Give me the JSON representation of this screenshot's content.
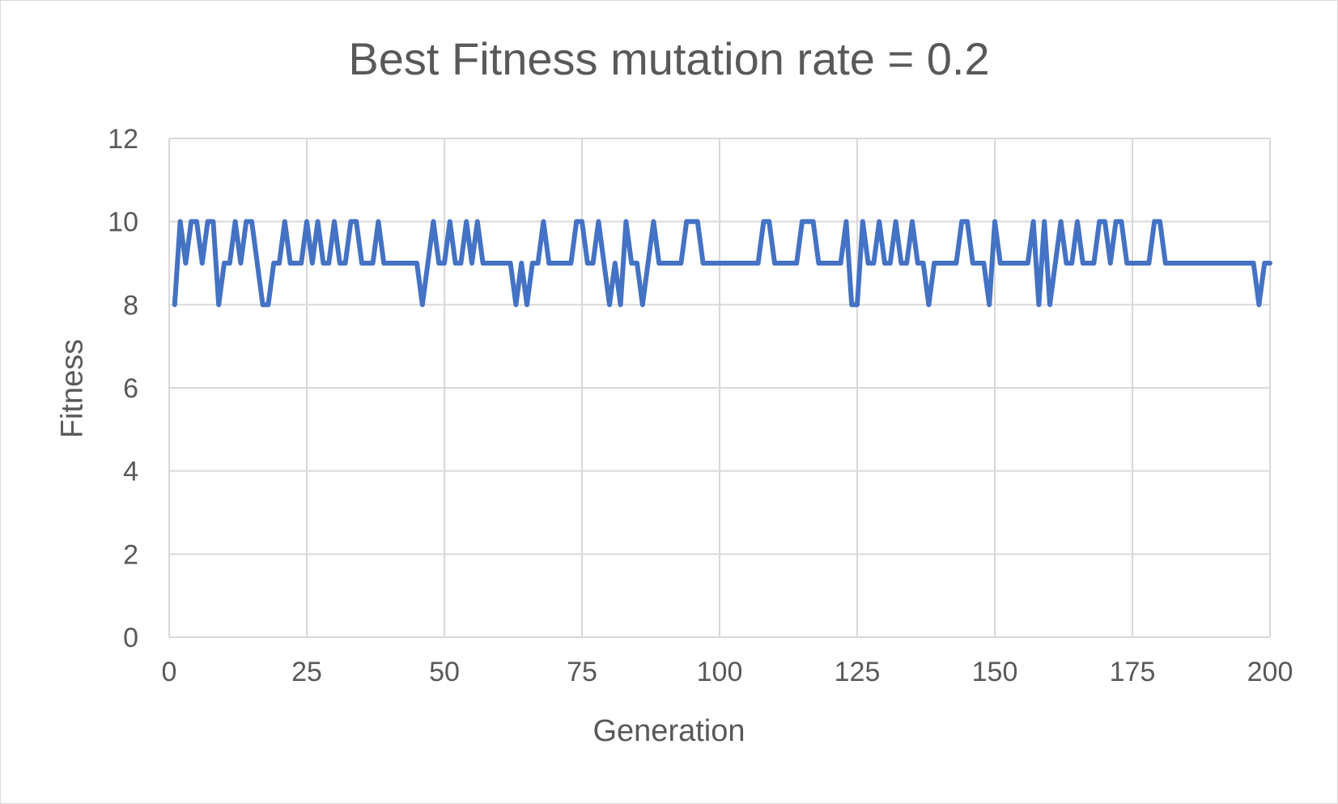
{
  "chart_data": {
    "type": "line",
    "title": "Best Fitness mutation rate = 0.2",
    "xlabel": "Generation",
    "ylabel": "Fitness",
    "xlim": [
      0,
      200
    ],
    "ylim": [
      0,
      12
    ],
    "x_ticks": [
      "0",
      "25",
      "50",
      "75",
      "100",
      "125",
      "150",
      "175",
      "200"
    ],
    "y_ticks": [
      "0",
      "2",
      "4",
      "6",
      "8",
      "10",
      "12"
    ],
    "grid": true,
    "legend": "none",
    "series": [
      {
        "color": "#4472c4",
        "x": [
          1,
          2,
          3,
          4,
          5,
          6,
          7,
          8,
          9,
          10,
          11,
          12,
          13,
          14,
          15,
          16,
          17,
          18,
          19,
          20,
          21,
          22,
          23,
          24,
          25,
          26,
          27,
          28,
          29,
          30,
          31,
          32,
          33,
          34,
          35,
          36,
          37,
          38,
          39,
          40,
          41,
          42,
          43,
          44,
          45,
          46,
          47,
          48,
          49,
          50,
          51,
          52,
          53,
          54,
          55,
          56,
          57,
          58,
          59,
          60,
          61,
          62,
          63,
          64,
          65,
          66,
          67,
          68,
          69,
          70,
          71,
          72,
          73,
          74,
          75,
          76,
          77,
          78,
          79,
          80,
          81,
          82,
          83,
          84,
          85,
          86,
          87,
          88,
          89,
          90,
          91,
          92,
          93,
          94,
          95,
          96,
          97,
          98,
          99,
          100,
          101,
          102,
          103,
          104,
          105,
          106,
          107,
          108,
          109,
          110,
          111,
          112,
          113,
          114,
          115,
          116,
          117,
          118,
          119,
          120,
          121,
          122,
          123,
          124,
          125,
          126,
          127,
          128,
          129,
          130,
          131,
          132,
          133,
          134,
          135,
          136,
          137,
          138,
          139,
          140,
          141,
          142,
          143,
          144,
          145,
          146,
          147,
          148,
          149,
          150,
          151,
          152,
          153,
          154,
          155,
          156,
          157,
          158,
          159,
          160,
          161,
          162,
          163,
          164,
          165,
          166,
          167,
          168,
          169,
          170,
          171,
          172,
          173,
          174,
          175,
          176,
          177,
          178,
          179,
          180,
          181,
          182,
          183,
          184,
          185,
          186,
          187,
          188,
          189,
          190,
          191,
          192,
          193,
          194,
          195,
          196,
          197,
          198,
          199,
          200
        ],
        "values": [
          8,
          10,
          9,
          10,
          10,
          9,
          10,
          10,
          8,
          9,
          9,
          10,
          9,
          10,
          10,
          9,
          8,
          8,
          9,
          9,
          10,
          9,
          9,
          9,
          10,
          9,
          10,
          9,
          9,
          10,
          9,
          9,
          10,
          10,
          9,
          9,
          9,
          10,
          9,
          9,
          9,
          9,
          9,
          9,
          9,
          8,
          9,
          10,
          9,
          9,
          10,
          9,
          9,
          10,
          9,
          10,
          9,
          9,
          9,
          9,
          9,
          9,
          8,
          9,
          8,
          9,
          9,
          10,
          9,
          9,
          9,
          9,
          9,
          10,
          10,
          9,
          9,
          10,
          9,
          8,
          9,
          8,
          10,
          9,
          9,
          8,
          9,
          10,
          9,
          9,
          9,
          9,
          9,
          10,
          10,
          10,
          9,
          9,
          9,
          9,
          9,
          9,
          9,
          9,
          9,
          9,
          9,
          10,
          10,
          9,
          9,
          9,
          9,
          9,
          10,
          10,
          10,
          9,
          9,
          9,
          9,
          9,
          10,
          8,
          8,
          10,
          9,
          9,
          10,
          9,
          9,
          10,
          9,
          9,
          10,
          9,
          9,
          8,
          9,
          9,
          9,
          9,
          9,
          10,
          10,
          9,
          9,
          9,
          8,
          10,
          9,
          9,
          9,
          9,
          9,
          9,
          10,
          8,
          10,
          8,
          9,
          10,
          9,
          9,
          10,
          9,
          9,
          9,
          10,
          10,
          9,
          10,
          10,
          9,
          9,
          9,
          9,
          9,
          10,
          10,
          9,
          9,
          9,
          9,
          9,
          9,
          9,
          9,
          9,
          9,
          9,
          9,
          9,
          9,
          9,
          9,
          9,
          8,
          9,
          9
        ]
      }
    ]
  }
}
